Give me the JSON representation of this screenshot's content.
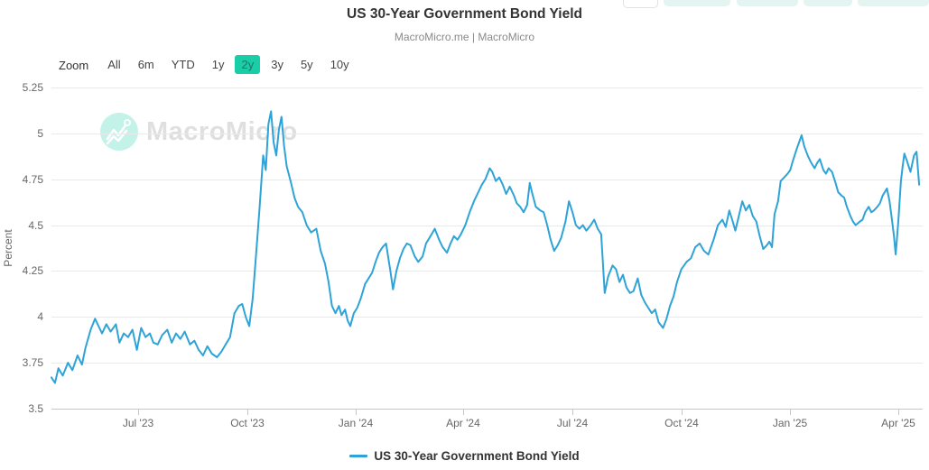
{
  "header": {
    "title": "US 30-Year Government Bond Yield",
    "subtitle": "MacroMicro.me | MacroMicro"
  },
  "watermark": {
    "text": "MacroMicro",
    "circle_color": "#aeeee0"
  },
  "range_selector": {
    "zoom_label": "Zoom",
    "selected_color": "#19cda7",
    "options": [
      {
        "label": "All",
        "selected": false
      },
      {
        "label": "6m",
        "selected": false
      },
      {
        "label": "YTD",
        "selected": false
      },
      {
        "label": "1y",
        "selected": false
      },
      {
        "label": "2y",
        "selected": true
      },
      {
        "label": "3y",
        "selected": false
      },
      {
        "label": "5y",
        "selected": false
      },
      {
        "label": "10y",
        "selected": false
      }
    ]
  },
  "legend": {
    "label": "US 30-Year Government Bond Yield",
    "color": "#2ea3d8"
  },
  "chart_data": {
    "type": "line",
    "title": "US 30-Year Government Bond Yield",
    "subtitle": "MacroMicro.me | MacroMicro",
    "ylabel": "Percent",
    "xlabel": "",
    "ylim": [
      3.5,
      5.25
    ],
    "grid": "horizontal",
    "legend_position": "bottom",
    "line_color": "#2ea3d8",
    "y_ticks": [
      {
        "label": "5.25",
        "value": 5.25
      },
      {
        "label": "5",
        "value": 5.0
      },
      {
        "label": "4.75",
        "value": 4.75
      },
      {
        "label": "4.5",
        "value": 4.5
      },
      {
        "label": "4.25",
        "value": 4.25
      },
      {
        "label": "4",
        "value": 4.0
      },
      {
        "label": "3.75",
        "value": 3.75
      },
      {
        "label": "3.5",
        "value": 3.5
      }
    ],
    "x_ticks": [
      {
        "label": "Jul '23",
        "pos": 0.0995
      },
      {
        "label": "Oct '23",
        "pos": 0.2249
      },
      {
        "label": "Jan '24",
        "pos": 0.3492
      },
      {
        "label": "Apr '24",
        "pos": 0.4725
      },
      {
        "label": "Jul '24",
        "pos": 0.5979
      },
      {
        "label": "Oct '24",
        "pos": 0.7233
      },
      {
        "label": "Jan '25",
        "pos": 0.8477
      },
      {
        "label": "Apr '25",
        "pos": 0.972
      }
    ],
    "x_range_note": "approx Apr 2023 to Apr 2025 (2y view), pos = fraction of x-axis",
    "series": [
      {
        "name": "US 30-Year Government Bond Yield",
        "unit": "percent",
        "points": [
          [
            0.0,
            3.67
          ],
          [
            0.004,
            3.64
          ],
          [
            0.008,
            3.72
          ],
          [
            0.013,
            3.68
          ],
          [
            0.019,
            3.75
          ],
          [
            0.024,
            3.71
          ],
          [
            0.03,
            3.79
          ],
          [
            0.035,
            3.74
          ],
          [
            0.039,
            3.83
          ],
          [
            0.045,
            3.93
          ],
          [
            0.05,
            3.99
          ],
          [
            0.055,
            3.94
          ],
          [
            0.058,
            3.91
          ],
          [
            0.063,
            3.96
          ],
          [
            0.068,
            3.92
          ],
          [
            0.074,
            3.96
          ],
          [
            0.078,
            3.86
          ],
          [
            0.083,
            3.91
          ],
          [
            0.088,
            3.89
          ],
          [
            0.093,
            3.93
          ],
          [
            0.098,
            3.82
          ],
          [
            0.103,
            3.94
          ],
          [
            0.108,
            3.89
          ],
          [
            0.113,
            3.91
          ],
          [
            0.117,
            3.86
          ],
          [
            0.122,
            3.85
          ],
          [
            0.127,
            3.9
          ],
          [
            0.133,
            3.93
          ],
          [
            0.138,
            3.86
          ],
          [
            0.143,
            3.91
          ],
          [
            0.148,
            3.88
          ],
          [
            0.153,
            3.92
          ],
          [
            0.159,
            3.85
          ],
          [
            0.164,
            3.87
          ],
          [
            0.169,
            3.82
          ],
          [
            0.174,
            3.79
          ],
          [
            0.179,
            3.84
          ],
          [
            0.184,
            3.8
          ],
          [
            0.19,
            3.78
          ],
          [
            0.195,
            3.81
          ],
          [
            0.2,
            3.85
          ],
          [
            0.205,
            3.89
          ],
          [
            0.21,
            4.02
          ],
          [
            0.215,
            4.06
          ],
          [
            0.219,
            4.07
          ],
          [
            0.223,
            4.0
          ],
          [
            0.227,
            3.95
          ],
          [
            0.231,
            4.1
          ],
          [
            0.235,
            4.35
          ],
          [
            0.239,
            4.6
          ],
          [
            0.243,
            4.88
          ],
          [
            0.246,
            4.8
          ],
          [
            0.249,
            5.05
          ],
          [
            0.252,
            5.12
          ],
          [
            0.255,
            4.95
          ],
          [
            0.258,
            4.88
          ],
          [
            0.261,
            5.02
          ],
          [
            0.264,
            5.09
          ],
          [
            0.267,
            4.93
          ],
          [
            0.27,
            4.82
          ],
          [
            0.275,
            4.73
          ],
          [
            0.279,
            4.65
          ],
          [
            0.283,
            4.6
          ],
          [
            0.288,
            4.57
          ],
          [
            0.293,
            4.5
          ],
          [
            0.298,
            4.46
          ],
          [
            0.304,
            4.48
          ],
          [
            0.309,
            4.36
          ],
          [
            0.314,
            4.29
          ],
          [
            0.318,
            4.19
          ],
          [
            0.322,
            4.06
          ],
          [
            0.326,
            4.02
          ],
          [
            0.33,
            4.06
          ],
          [
            0.333,
            4.01
          ],
          [
            0.337,
            4.04
          ],
          [
            0.34,
            3.98
          ],
          [
            0.343,
            3.95
          ],
          [
            0.347,
            4.02
          ],
          [
            0.351,
            4.05
          ],
          [
            0.355,
            4.1
          ],
          [
            0.36,
            4.18
          ],
          [
            0.364,
            4.21
          ],
          [
            0.368,
            4.24
          ],
          [
            0.372,
            4.3
          ],
          [
            0.376,
            4.35
          ],
          [
            0.38,
            4.38
          ],
          [
            0.384,
            4.4
          ],
          [
            0.389,
            4.25
          ],
          [
            0.392,
            4.15
          ],
          [
            0.396,
            4.25
          ],
          [
            0.4,
            4.32
          ],
          [
            0.404,
            4.37
          ],
          [
            0.408,
            4.4
          ],
          [
            0.412,
            4.39
          ],
          [
            0.417,
            4.33
          ],
          [
            0.421,
            4.3
          ],
          [
            0.426,
            4.33
          ],
          [
            0.43,
            4.4
          ],
          [
            0.435,
            4.44
          ],
          [
            0.44,
            4.48
          ],
          [
            0.445,
            4.42
          ],
          [
            0.449,
            4.38
          ],
          [
            0.454,
            4.35
          ],
          [
            0.458,
            4.4
          ],
          [
            0.462,
            4.44
          ],
          [
            0.466,
            4.42
          ],
          [
            0.47,
            4.45
          ],
          [
            0.475,
            4.5
          ],
          [
            0.48,
            4.57
          ],
          [
            0.485,
            4.63
          ],
          [
            0.49,
            4.68
          ],
          [
            0.494,
            4.72
          ],
          [
            0.498,
            4.75
          ],
          [
            0.503,
            4.81
          ],
          [
            0.506,
            4.79
          ],
          [
            0.51,
            4.74
          ],
          [
            0.514,
            4.76
          ],
          [
            0.518,
            4.72
          ],
          [
            0.522,
            4.67
          ],
          [
            0.526,
            4.71
          ],
          [
            0.531,
            4.66
          ],
          [
            0.534,
            4.62
          ],
          [
            0.538,
            4.6
          ],
          [
            0.542,
            4.57
          ],
          [
            0.546,
            4.61
          ],
          [
            0.549,
            4.73
          ],
          [
            0.552,
            4.67
          ],
          [
            0.556,
            4.6
          ],
          [
            0.561,
            4.58
          ],
          [
            0.565,
            4.57
          ],
          [
            0.569,
            4.5
          ],
          [
            0.573,
            4.42
          ],
          [
            0.577,
            4.36
          ],
          [
            0.581,
            4.39
          ],
          [
            0.585,
            4.43
          ],
          [
            0.59,
            4.52
          ],
          [
            0.594,
            4.63
          ],
          [
            0.598,
            4.57
          ],
          [
            0.602,
            4.5
          ],
          [
            0.606,
            4.48
          ],
          [
            0.61,
            4.5
          ],
          [
            0.614,
            4.47
          ],
          [
            0.619,
            4.5
          ],
          [
            0.623,
            4.53
          ],
          [
            0.627,
            4.48
          ],
          [
            0.631,
            4.45
          ],
          [
            0.635,
            4.13
          ],
          [
            0.639,
            4.22
          ],
          [
            0.644,
            4.28
          ],
          [
            0.648,
            4.26
          ],
          [
            0.652,
            4.19
          ],
          [
            0.656,
            4.23
          ],
          [
            0.66,
            4.16
          ],
          [
            0.664,
            4.13
          ],
          [
            0.668,
            4.14
          ],
          [
            0.673,
            4.21
          ],
          [
            0.677,
            4.12
          ],
          [
            0.681,
            4.08
          ],
          [
            0.685,
            4.05
          ],
          [
            0.689,
            4.02
          ],
          [
            0.693,
            4.04
          ],
          [
            0.697,
            3.97
          ],
          [
            0.702,
            3.94
          ],
          [
            0.706,
            3.99
          ],
          [
            0.71,
            4.06
          ],
          [
            0.714,
            4.11
          ],
          [
            0.718,
            4.19
          ],
          [
            0.723,
            4.26
          ],
          [
            0.729,
            4.3
          ],
          [
            0.734,
            4.32
          ],
          [
            0.739,
            4.38
          ],
          [
            0.744,
            4.4
          ],
          [
            0.749,
            4.36
          ],
          [
            0.754,
            4.34
          ],
          [
            0.76,
            4.42
          ],
          [
            0.765,
            4.5
          ],
          [
            0.77,
            4.53
          ],
          [
            0.774,
            4.49
          ],
          [
            0.778,
            4.58
          ],
          [
            0.782,
            4.52
          ],
          [
            0.785,
            4.47
          ],
          [
            0.789,
            4.55
          ],
          [
            0.793,
            4.63
          ],
          [
            0.797,
            4.58
          ],
          [
            0.801,
            4.61
          ],
          [
            0.805,
            4.55
          ],
          [
            0.809,
            4.52
          ],
          [
            0.813,
            4.44
          ],
          [
            0.817,
            4.37
          ],
          [
            0.821,
            4.39
          ],
          [
            0.824,
            4.41
          ],
          [
            0.827,
            4.38
          ],
          [
            0.83,
            4.56
          ],
          [
            0.834,
            4.63
          ],
          [
            0.837,
            4.74
          ],
          [
            0.841,
            4.76
          ],
          [
            0.845,
            4.78
          ],
          [
            0.848,
            4.8
          ],
          [
            0.851,
            4.85
          ],
          [
            0.855,
            4.91
          ],
          [
            0.858,
            4.95
          ],
          [
            0.861,
            4.99
          ],
          [
            0.864,
            4.93
          ],
          [
            0.868,
            4.88
          ],
          [
            0.872,
            4.84
          ],
          [
            0.876,
            4.81
          ],
          [
            0.879,
            4.84
          ],
          [
            0.882,
            4.86
          ],
          [
            0.886,
            4.8
          ],
          [
            0.889,
            4.78
          ],
          [
            0.892,
            4.81
          ],
          [
            0.896,
            4.79
          ],
          [
            0.9,
            4.73
          ],
          [
            0.903,
            4.68
          ],
          [
            0.907,
            4.66
          ],
          [
            0.91,
            4.65
          ],
          [
            0.913,
            4.6
          ],
          [
            0.917,
            4.55
          ],
          [
            0.92,
            4.52
          ],
          [
            0.923,
            4.5
          ],
          [
            0.928,
            4.52
          ],
          [
            0.931,
            4.53
          ],
          [
            0.934,
            4.57
          ],
          [
            0.938,
            4.6
          ],
          [
            0.941,
            4.57
          ],
          [
            0.944,
            4.58
          ],
          [
            0.948,
            4.6
          ],
          [
            0.951,
            4.62
          ],
          [
            0.954,
            4.66
          ],
          [
            0.959,
            4.7
          ],
          [
            0.962,
            4.63
          ],
          [
            0.965,
            4.52
          ],
          [
            0.967,
            4.44
          ],
          [
            0.969,
            4.34
          ],
          [
            0.972,
            4.52
          ],
          [
            0.975,
            4.74
          ],
          [
            0.977,
            4.82
          ],
          [
            0.979,
            4.89
          ],
          [
            0.982,
            4.85
          ],
          [
            0.986,
            4.79
          ],
          [
            0.99,
            4.88
          ],
          [
            0.993,
            4.9
          ],
          [
            0.996,
            4.72
          ]
        ]
      }
    ]
  }
}
